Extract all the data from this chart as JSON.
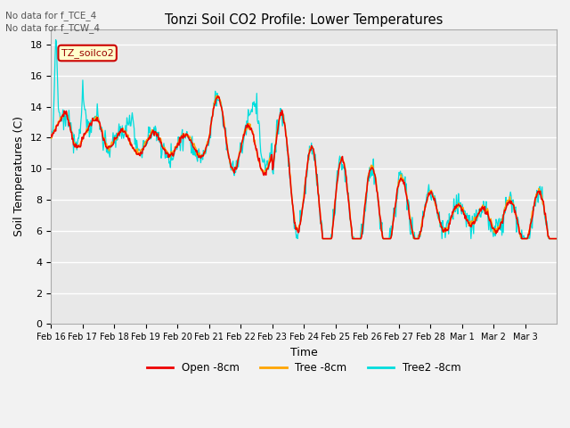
{
  "title": "Tonzi Soil CO2 Profile: Lower Temperatures",
  "xlabel": "Time",
  "ylabel": "Soil Temperatures (C)",
  "note1": "No data for f_TCE_4",
  "note2": "No data for f_TCW_4",
  "annotation": "TZ_soilco2",
  "ylim": [
    0,
    19
  ],
  "yticks": [
    0,
    2,
    4,
    6,
    8,
    10,
    12,
    14,
    16,
    18
  ],
  "legend_labels": [
    "Open -8cm",
    "Tree -8cm",
    "Tree2 -8cm"
  ],
  "colors": {
    "open": "#ee0000",
    "tree": "#ffa500",
    "tree2": "#00dddd"
  },
  "xtick_labels": [
    "Feb 16",
    "Feb 17",
    "Feb 18",
    "Feb 19",
    "Feb 20",
    "Feb 21",
    "Feb 22",
    "Feb 23",
    "Feb 24",
    "Feb 25",
    "Feb 26",
    "Feb 27",
    "Feb 28",
    "Mar 1",
    "Mar 2",
    "Mar 3"
  ]
}
